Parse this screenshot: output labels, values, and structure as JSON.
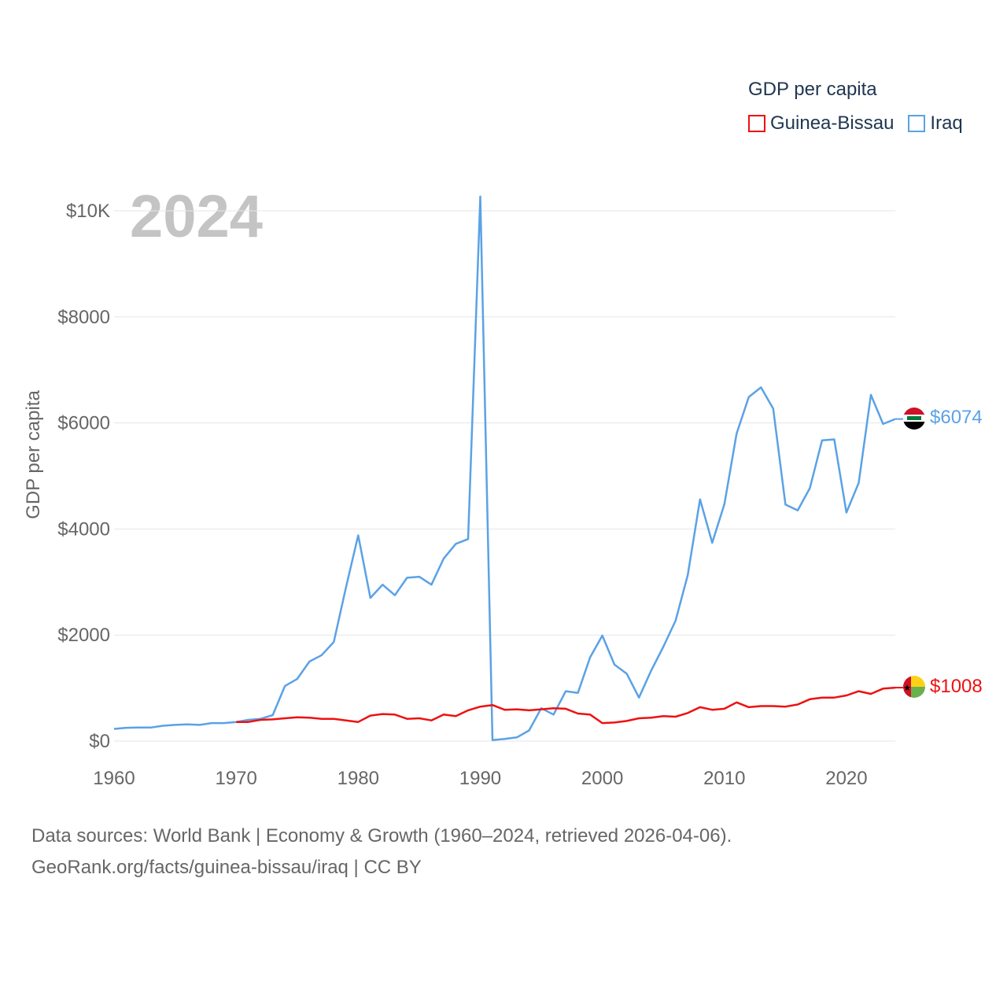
{
  "legend": {
    "title": "GDP per capita",
    "items": [
      {
        "label": "Guinea-Bissau",
        "color": "#ee1111"
      },
      {
        "label": "Iraq",
        "color": "#5aa2e6"
      }
    ]
  },
  "year_label": "2024",
  "source": {
    "line1": "Data sources: World Bank | Economy & Growth (1960–2024, retrieved 2026-04-06).",
    "line2": "GeoRank.org/facts/guinea-bissau/iraq | CC BY"
  },
  "chart_data": {
    "type": "line",
    "title": "GDP per capita",
    "xlabel": "",
    "ylabel": "GDP per capita",
    "xlim": [
      1960,
      2024
    ],
    "ylim": [
      0,
      10000
    ],
    "yticks": [
      0,
      2000,
      4000,
      6000,
      8000,
      10000
    ],
    "ytick_labels": [
      "$0",
      "$2000",
      "$4000",
      "$6000",
      "$8000",
      "$10K"
    ],
    "xticks": [
      1960,
      1970,
      1980,
      1990,
      2000,
      2010,
      2020
    ],
    "xtick_labels": [
      "1960",
      "1970",
      "1980",
      "1990",
      "2000",
      "2010",
      "2020"
    ],
    "grid": true,
    "series": [
      {
        "name": "Guinea-Bissau",
        "color": "#ee1111",
        "end_label": "$1008",
        "x": [
          1970,
          1971,
          1972,
          1973,
          1974,
          1975,
          1976,
          1977,
          1978,
          1979,
          1980,
          1981,
          1982,
          1983,
          1984,
          1985,
          1986,
          1987,
          1988,
          1989,
          1990,
          1991,
          1992,
          1993,
          1994,
          1995,
          1996,
          1997,
          1998,
          1999,
          2000,
          2001,
          2002,
          2003,
          2004,
          2005,
          2006,
          2007,
          2008,
          2009,
          2010,
          2011,
          2012,
          2013,
          2014,
          2015,
          2016,
          2017,
          2018,
          2019,
          2020,
          2021,
          2022,
          2023,
          2024
        ],
        "values": [
          360,
          360,
          400,
          410,
          430,
          450,
          440,
          420,
          420,
          390,
          360,
          480,
          510,
          500,
          420,
          430,
          390,
          500,
          470,
          580,
          650,
          680,
          590,
          600,
          580,
          600,
          620,
          610,
          520,
          500,
          340,
          350,
          380,
          430,
          440,
          470,
          460,
          530,
          640,
          590,
          610,
          730,
          640,
          660,
          660,
          650,
          690,
          790,
          820,
          820,
          860,
          940,
          890,
          990,
          1008
        ]
      },
      {
        "name": "Iraq",
        "color": "#5aa2e6",
        "end_label": "$6074",
        "x": [
          1960,
          1961,
          1962,
          1963,
          1964,
          1965,
          1966,
          1967,
          1968,
          1969,
          1970,
          1971,
          1972,
          1973,
          1974,
          1975,
          1976,
          1977,
          1978,
          1979,
          1980,
          1981,
          1982,
          1983,
          1984,
          1985,
          1986,
          1987,
          1988,
          1989,
          1990,
          1991,
          1992,
          1993,
          1994,
          1995,
          1996,
          1997,
          1998,
          1999,
          2000,
          2001,
          2002,
          2003,
          2004,
          2005,
          2006,
          2007,
          2008,
          2009,
          2010,
          2011,
          2012,
          2013,
          2014,
          2015,
          2016,
          2017,
          2018,
          2019,
          2020,
          2021,
          2022,
          2023,
          2024
        ],
        "values": [
          230,
          250,
          255,
          255,
          290,
          305,
          315,
          305,
          340,
          340,
          360,
          400,
          420,
          490,
          1040,
          1170,
          1500,
          1620,
          1870,
          2900,
          3880,
          2700,
          2950,
          2750,
          3080,
          3100,
          2950,
          3440,
          3720,
          3810,
          10270,
          20,
          40,
          70,
          200,
          620,
          500,
          940,
          910,
          1580,
          1990,
          1440,
          1270,
          820,
          1330,
          1780,
          2270,
          3130,
          4560,
          3740,
          4470,
          5800,
          6490,
          6670,
          6270,
          4460,
          4350,
          4770,
          5670,
          5690,
          4310,
          4870,
          6530,
          5980,
          6074
        ]
      }
    ]
  }
}
